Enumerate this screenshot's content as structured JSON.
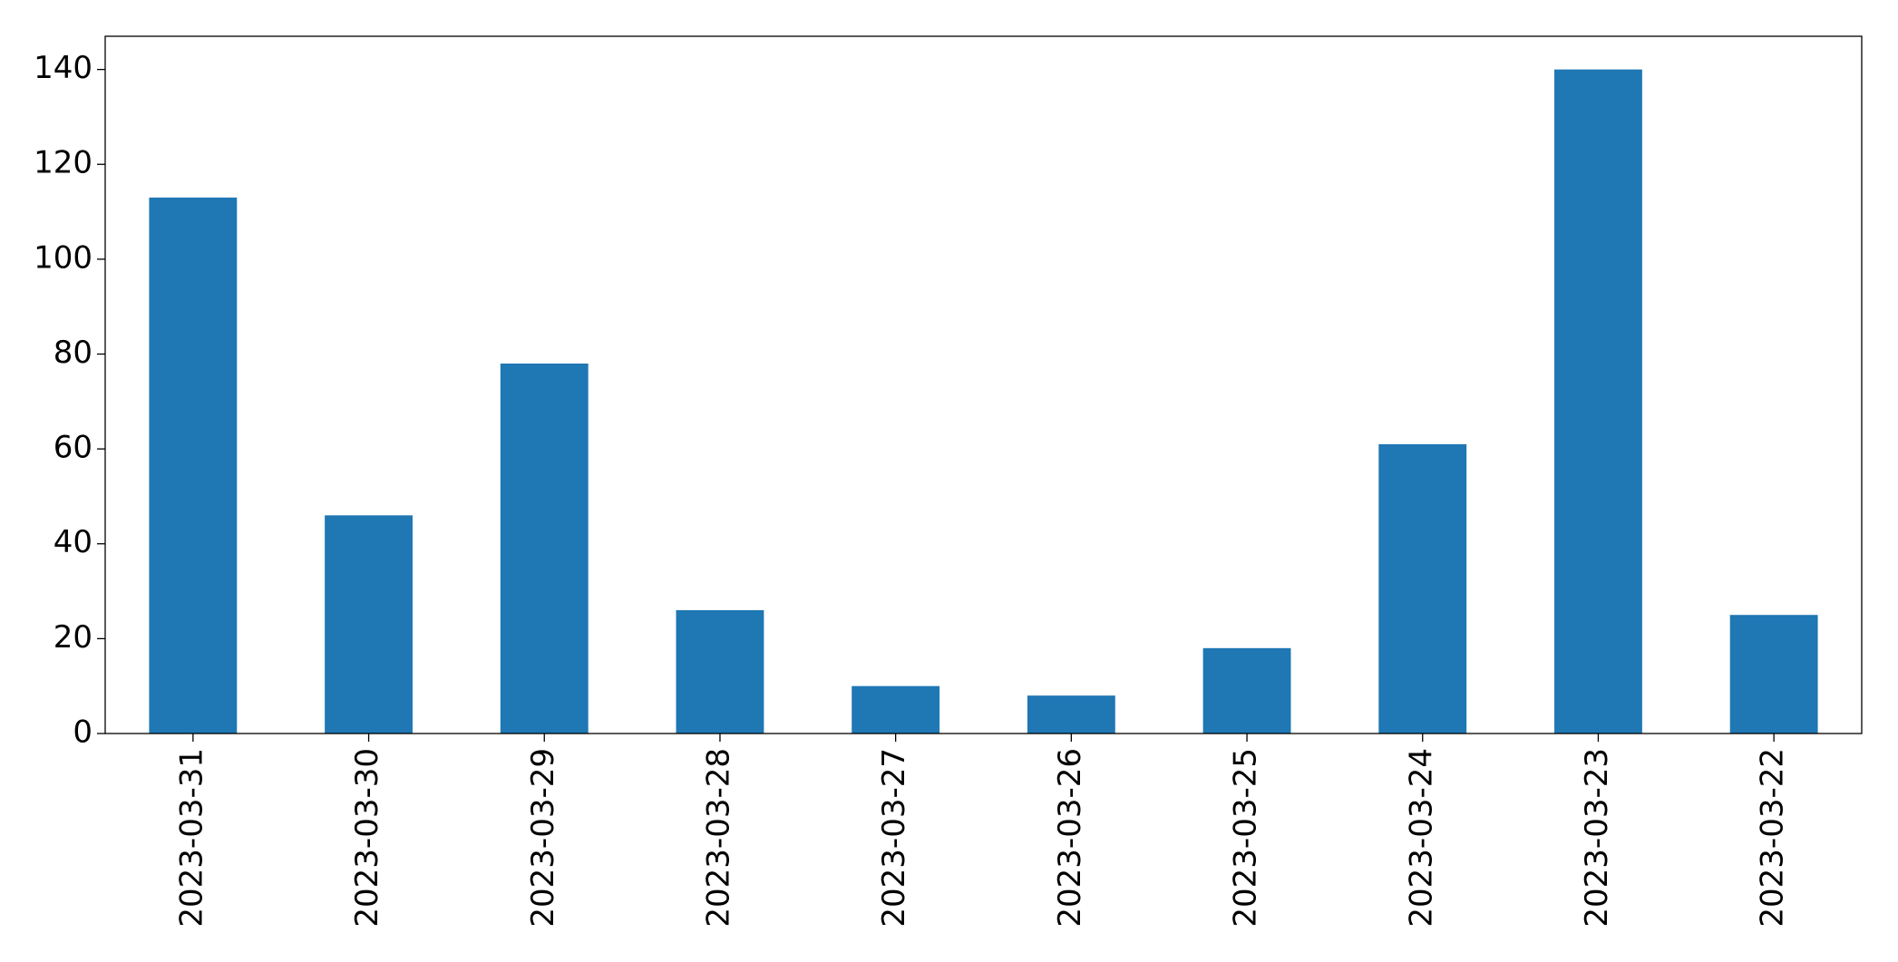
{
  "chart_data": {
    "type": "bar",
    "categories": [
      "2023-03-31",
      "2023-03-30",
      "2023-03-29",
      "2023-03-28",
      "2023-03-27",
      "2023-03-26",
      "2023-03-25",
      "2023-03-24",
      "2023-03-23",
      "2023-03-22"
    ],
    "values": [
      113,
      46,
      78,
      26,
      10,
      8,
      18,
      61,
      140,
      25
    ],
    "color": "#1f77b4",
    "ylim": [
      0,
      147
    ],
    "yticks": [
      0,
      20,
      40,
      60,
      80,
      100,
      120,
      140
    ],
    "grid": false
  }
}
